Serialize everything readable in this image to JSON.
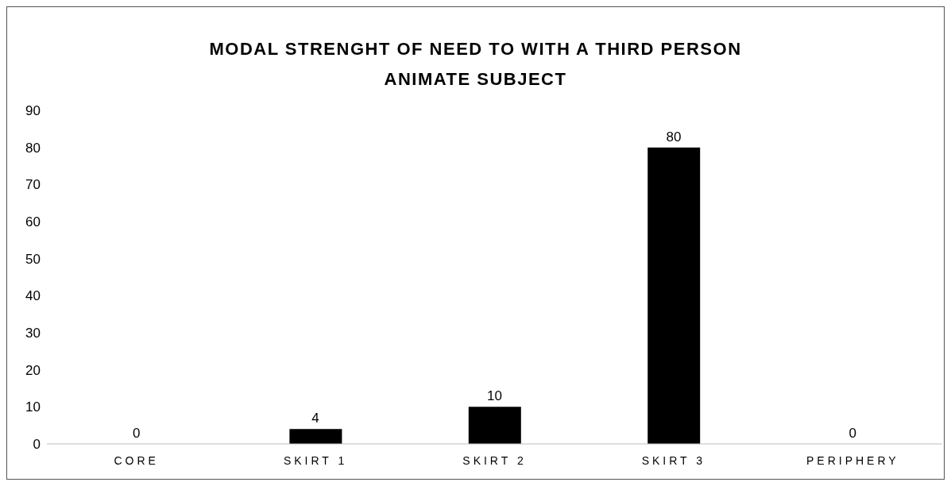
{
  "chart_data": {
    "type": "bar",
    "title": "MODAL STRENGHT OF NEED TO WITH A THIRD PERSON ANIMATE SUBJECT",
    "categories": [
      "CORE",
      "SKIRT 1",
      "SKIRT 2",
      "SKIRT 3",
      "PERIPHERY"
    ],
    "values": [
      0,
      4,
      10,
      80,
      0
    ],
    "color": "#000000",
    "ylim": [
      0,
      90
    ],
    "yticks": [
      0,
      10,
      20,
      30,
      40,
      50,
      60,
      70,
      80,
      90
    ],
    "grid": false,
    "data_labels": true,
    "legend": false
  }
}
